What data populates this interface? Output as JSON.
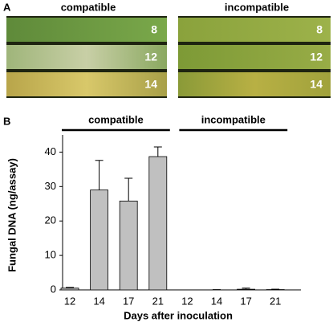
{
  "panel_a": {
    "label": "A",
    "panels": [
      {
        "title": "compatible",
        "strips": [
          "8",
          "12",
          "14"
        ]
      },
      {
        "title": "incompatible",
        "strips": [
          "8",
          "12",
          "14"
        ]
      }
    ]
  },
  "chart_data": {
    "type": "bar",
    "panel_label": "B",
    "ylabel": "Fungal DNA (ng/assay)",
    "xlabel": "Days after inoculation",
    "groups": [
      {
        "label": "compatible"
      },
      {
        "label": "incompatible"
      }
    ],
    "categories": [
      "12",
      "14",
      "17",
      "21",
      "12",
      "14",
      "17",
      "21"
    ],
    "values": [
      0.5,
      29,
      25.8,
      38.7,
      0,
      0,
      0.2,
      0.1
    ],
    "errors": [
      0.2,
      8.6,
      6.6,
      2.8,
      0,
      0.1,
      0.3,
      0.1
    ],
    "color": "#c0c0c0",
    "ylim": [
      0,
      45
    ],
    "yticks": [
      0,
      10,
      20,
      30,
      40
    ]
  }
}
